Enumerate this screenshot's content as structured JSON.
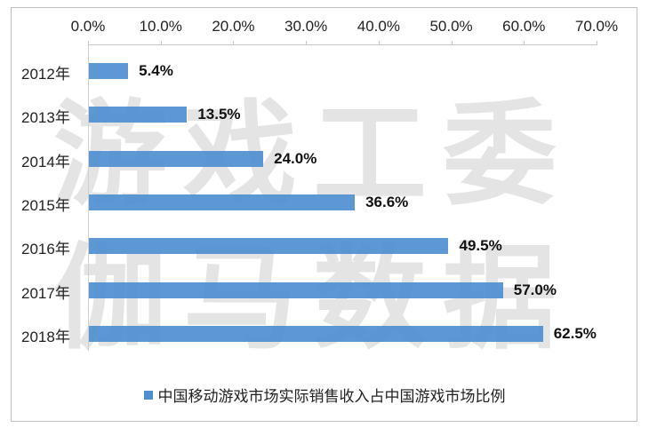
{
  "chart_data": {
    "type": "bar",
    "orientation": "horizontal",
    "title": "",
    "xlabel": "",
    "ylabel": "",
    "xlim": [
      0,
      70
    ],
    "x_ticks": [
      "0.0%",
      "10.0%",
      "20.0%",
      "30.0%",
      "40.0%",
      "50.0%",
      "60.0%",
      "70.0%"
    ],
    "x_axis_position": "top",
    "categories": [
      "2012年",
      "2013年",
      "2014年",
      "2015年",
      "2016年",
      "2017年",
      "2018年"
    ],
    "series": [
      {
        "name": "中国移动游戏市场实际销售收入占中国游戏市场比例",
        "values": [
          5.4,
          13.5,
          24.0,
          36.6,
          49.5,
          57.0,
          62.5
        ],
        "labels": [
          "5.4%",
          "13.5%",
          "24.0%",
          "36.6%",
          "49.5%",
          "57.0%",
          "62.5%"
        ],
        "color": "#4f8fd1"
      }
    ],
    "legend_position": "bottom",
    "grid": false,
    "watermark": [
      "游戏工委",
      "伽马数据"
    ]
  }
}
